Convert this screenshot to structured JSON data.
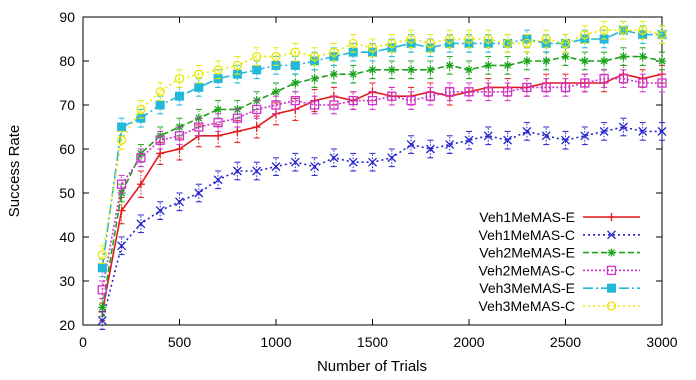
{
  "chart_data": {
    "type": "line",
    "xlabel": "Number of Trials",
    "ylabel": "Success Rate",
    "xlim": [
      0,
      3000
    ],
    "ylim": [
      20,
      90
    ],
    "x_ticks": [
      0,
      500,
      1000,
      1500,
      2000,
      2500,
      3000
    ],
    "y_ticks": [
      20,
      30,
      40,
      50,
      60,
      70,
      80,
      90
    ],
    "grid": false,
    "legend_position": "bottom-right",
    "x": [
      100,
      200,
      300,
      400,
      500,
      600,
      700,
      800,
      900,
      1000,
      1100,
      1200,
      1300,
      1400,
      1500,
      1600,
      1700,
      1800,
      1900,
      2000,
      2100,
      2200,
      2300,
      2400,
      2500,
      2600,
      2700,
      2800,
      2900,
      3000
    ],
    "series": [
      {
        "name": "Veh1MeMAS-E",
        "color": "#e31a1c",
        "marker": "plus",
        "dash": "",
        "values": [
          23,
          46,
          52,
          59,
          60,
          63,
          63,
          64,
          65,
          68,
          69,
          71,
          72,
          71,
          73,
          72,
          72,
          73,
          72,
          73,
          74,
          74,
          74,
          75,
          75,
          75,
          75,
          77,
          76,
          77
        ],
        "errors": [
          2,
          3,
          3,
          2.5,
          2.5,
          2.5,
          2.5,
          2.5,
          2.5,
          2.5,
          2.5,
          2.5,
          2,
          2,
          2,
          2,
          2,
          2,
          2,
          2,
          2,
          2,
          2,
          2,
          2,
          2,
          2,
          2,
          2,
          2
        ]
      },
      {
        "name": "Veh1MeMAS-C",
        "color": "#2222cc",
        "marker": "x",
        "dash": "2,3",
        "values": [
          21,
          38,
          43,
          46,
          48,
          50,
          53,
          55,
          55,
          56,
          57,
          56,
          58,
          57,
          57,
          58,
          61,
          60,
          61,
          62,
          63,
          62,
          64,
          63,
          62,
          63,
          64,
          65,
          64,
          64
        ],
        "errors": [
          2,
          2,
          2,
          2,
          2,
          2,
          2,
          2,
          2,
          2,
          2,
          2,
          2,
          2,
          2,
          2,
          2,
          2,
          2,
          2,
          2,
          2,
          2,
          2,
          2,
          2,
          2,
          2,
          2,
          2
        ]
      },
      {
        "name": "Veh2MeMAS-E",
        "color": "#1aa31a",
        "marker": "star",
        "dash": "6,3",
        "values": [
          24,
          50,
          59,
          63,
          65,
          67,
          69,
          69,
          71,
          73,
          75,
          76,
          77,
          77,
          78,
          78,
          78,
          78,
          79,
          78,
          79,
          79,
          80,
          80,
          81,
          80,
          80,
          81,
          81,
          80
        ],
        "errors": [
          2,
          2,
          2,
          2,
          2,
          2,
          2,
          2,
          2,
          2,
          2,
          2,
          2,
          2,
          2,
          2,
          2,
          2,
          2,
          2,
          2,
          2,
          2,
          2,
          2,
          2,
          2,
          2,
          2,
          2
        ]
      },
      {
        "name": "Veh2MeMAS-C",
        "color": "#cc33cc",
        "marker": "square-open",
        "dash": "2,2",
        "values": [
          28,
          52,
          58,
          62,
          63,
          65,
          66,
          67,
          69,
          70,
          71,
          70,
          70,
          71,
          71,
          72,
          71,
          72,
          73,
          73,
          73,
          73,
          74,
          74,
          74,
          75,
          76,
          76,
          75,
          75
        ],
        "errors": [
          2,
          2,
          2,
          2,
          2,
          2,
          2,
          2,
          2,
          2,
          2,
          2,
          2,
          2,
          2,
          2,
          2,
          2,
          2,
          2,
          2,
          2,
          2,
          2,
          2,
          2,
          2,
          2,
          2,
          2
        ]
      },
      {
        "name": "Veh3MeMAS-E",
        "color": "#22b8d8",
        "marker": "square-filled",
        "dash": "10,3,2,3",
        "values": [
          33,
          65,
          67,
          70,
          72,
          74,
          76,
          77,
          78,
          79,
          79,
          80,
          81,
          82,
          82,
          83,
          84,
          83,
          84,
          84,
          84,
          84,
          85,
          84,
          84,
          85,
          85,
          87,
          86,
          86
        ],
        "errors": [
          2,
          2,
          2,
          2,
          2,
          2,
          2,
          2,
          2,
          2,
          2,
          2,
          2,
          2,
          2,
          2,
          2,
          2,
          2,
          2,
          2,
          2,
          2,
          2,
          2,
          2,
          2,
          2,
          2,
          2
        ]
      },
      {
        "name": "Veh3MeMAS-C",
        "color": "#e8e800",
        "marker": "circle-open",
        "dash": "2,3",
        "values": [
          36,
          62,
          69,
          73,
          76,
          77,
          78,
          79,
          81,
          81,
          82,
          81,
          82,
          84,
          83,
          84,
          85,
          84,
          85,
          85,
          85,
          84,
          84,
          85,
          84,
          86,
          87,
          87,
          87,
          86
        ],
        "errors": [
          2,
          2,
          2,
          2,
          2,
          2,
          2,
          2,
          2,
          2,
          2,
          2,
          2,
          2,
          2,
          2,
          2,
          2,
          2,
          2,
          2,
          2,
          2,
          2,
          2,
          2,
          2,
          2,
          2,
          2
        ]
      }
    ]
  }
}
